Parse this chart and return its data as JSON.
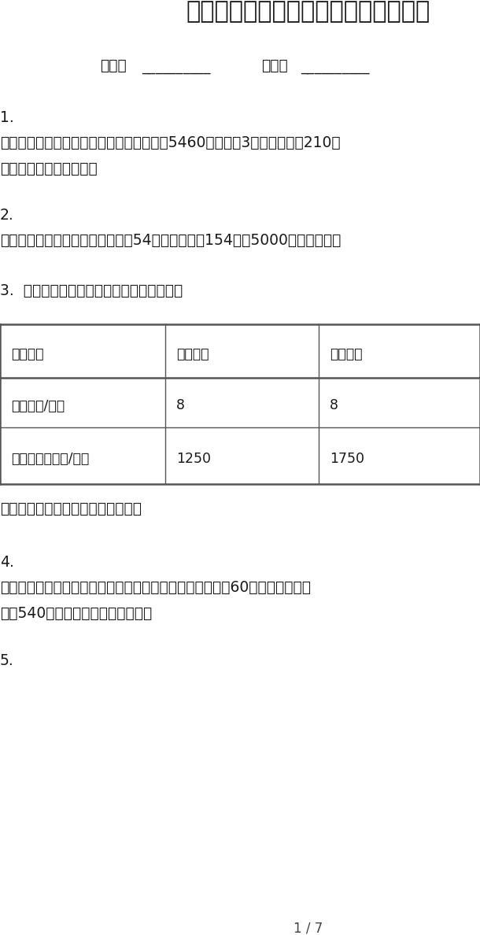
{
  "title": "冀教版四年级下册数学应用题专项真题",
  "subtitle_label1": "班级：",
  "subtitle_underline1": "__________",
  "subtitle_label2": "姓名：",
  "subtitle_underline2": "__________",
  "q1_num": "1.",
  "q1_text1": "妈妈有一次在商场购物，买了一台电视用去5460元，买了3件被套，每件210元",
  "q1_text2": "，妈妈一共用去多少元？",
  "q2_num": "2.",
  "q2_text": "同学们去秋游，每套车票和门票共54元，一共需要154套。5000元买票够吗？",
  "q3_num": "3.  某牛奶厂加工车间一天的加工情况如下。",
  "table_headers": [
    "车间名称",
    "第一车间",
    "第二车间"
  ],
  "table_row1": [
    "工作时间/小时",
    "8",
    "8"
  ],
  "table_row2": [
    "工作效率／（箱/时）",
    "1250",
    "1750"
  ],
  "q3_follow": "这两个车间一天共加工牛奶多少箱？",
  "q4_num": "4.",
  "q4_text1": "学校图书室陈老师去新华书店买《三毛流浪记》丛书，每套60元。陈老师一共",
  "q4_text2": "带了540元钱，大约可以买多少套？",
  "q5_num": "5.",
  "page_indicator": "1 / 7",
  "bg_color": "#ffffff",
  "text_color": "#1a1a1a",
  "title_fontsize": 22,
  "body_fontsize": 13.5,
  "num_fontsize": 13.5,
  "table_fontsize": 12.5,
  "page_fontsize": 12
}
